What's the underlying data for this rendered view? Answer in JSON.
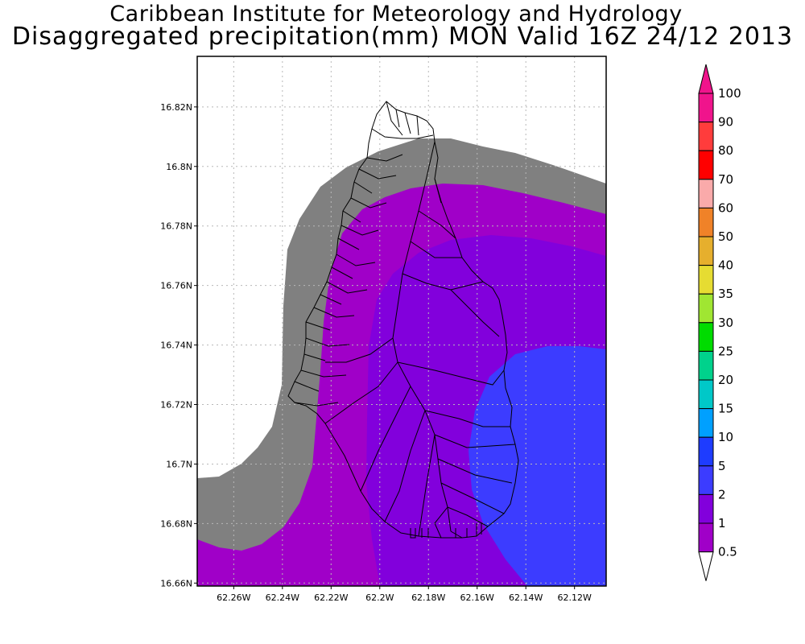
{
  "header": {
    "institution": "Caribbean Institute for Meteorology and Hydrology",
    "product": "Disaggregated precipitation(mm) MON Valid 16Z 24/12 2013"
  },
  "map": {
    "lat_labels": [
      "16.82N",
      "16.8N",
      "16.78N",
      "16.76N",
      "16.74N",
      "16.72N",
      "16.7N",
      "16.68N",
      "16.66N"
    ],
    "lon_labels": [
      "62.26W",
      "62.24W",
      "62.22W",
      "62.2W",
      "62.18W",
      "62.16W",
      "62.14W",
      "62.12W"
    ],
    "extent": {
      "lon_min": -62.275,
      "lon_max": -62.107,
      "lat_min": 16.659,
      "lat_max": 16.837
    }
  },
  "legend": {
    "levels": [
      "0.5",
      "1",
      "2",
      "5",
      "10",
      "15",
      "20",
      "25",
      "30",
      "35",
      "40",
      "50",
      "60",
      "70",
      "80",
      "90",
      "100"
    ],
    "colors": [
      "#808080",
      "#a000c8",
      "#8200dc",
      "#3c3cff",
      "#1e3cff",
      "#00a0ff",
      "#00c8c8",
      "#00d28c",
      "#00dc00",
      "#a0e632",
      "#e6dc32",
      "#e6af2d",
      "#f08228",
      "#faaaaa",
      "#ff0000",
      "#ff3c3c",
      "#f0148c"
    ]
  },
  "field_colors": {
    "below_min": "#ffffff",
    "band_0_5_1": "#808080",
    "band_1_2": "#a000c8",
    "band_2_5": "#8200dc",
    "band_5_10": "#3c3cff"
  }
}
